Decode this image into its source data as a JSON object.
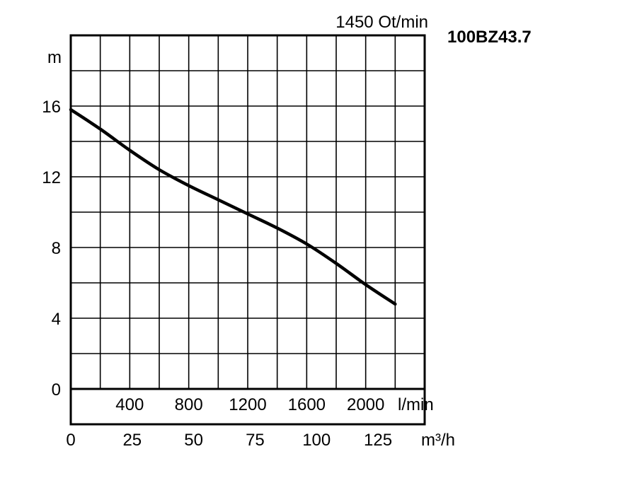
{
  "chart_data": {
    "type": "line",
    "title": "100BZ43.7",
    "subtitle": "1450 Ot/min",
    "ylabel": "m",
    "ylim": [
      0,
      20
    ],
    "yticks": [
      "0",
      "4",
      "8",
      "12",
      "16"
    ],
    "x_primary_label": "l/min",
    "x_primary_ticks": [
      "400",
      "800",
      "1200",
      "1600",
      "2000"
    ],
    "x_secondary_label": "m³/h",
    "x_secondary_ticks": [
      "0",
      "25",
      "50",
      "75",
      "100",
      "125"
    ],
    "xlim": [
      0,
      2400
    ],
    "grid": true,
    "series": [
      {
        "x": [
          0,
          200,
          400,
          600,
          800,
          1000,
          1200,
          1400,
          1600,
          1800,
          2000,
          2200
        ],
        "values": [
          15.8,
          14.7,
          13.5,
          12.4,
          11.5,
          10.7,
          9.9,
          9.1,
          8.2,
          7.1,
          5.9,
          4.8
        ]
      }
    ]
  }
}
